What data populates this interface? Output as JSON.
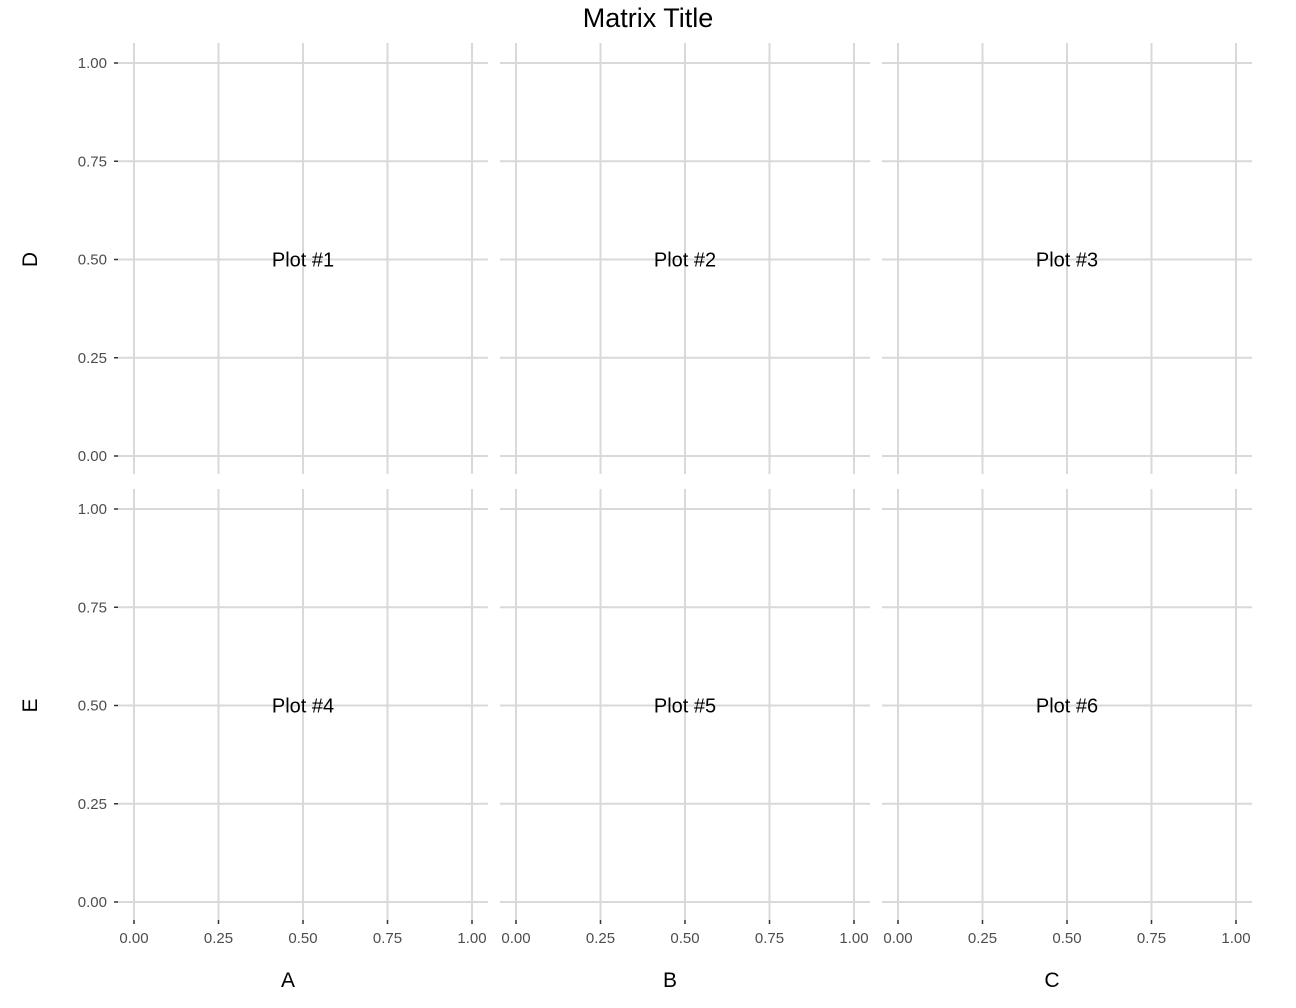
{
  "chart_data": {
    "type": "scatter",
    "title": "Matrix Title",
    "columns": [
      "A",
      "B",
      "C"
    ],
    "rows": [
      "D",
      "E"
    ],
    "xlim": [
      0,
      1
    ],
    "ylim": [
      0,
      1
    ],
    "x_ticks": [
      "0.00",
      "0.25",
      "0.50",
      "0.75",
      "1.00"
    ],
    "y_ticks": [
      "0.00",
      "0.25",
      "0.50",
      "0.75",
      "1.00"
    ],
    "grid": true,
    "panels": [
      {
        "row": "D",
        "column": "A",
        "label": "Plot #1",
        "label_x": 0.5,
        "label_y": 0.5
      },
      {
        "row": "D",
        "column": "B",
        "label": "Plot #2",
        "label_x": 0.5,
        "label_y": 0.5
      },
      {
        "row": "D",
        "column": "C",
        "label": "Plot #3",
        "label_x": 0.5,
        "label_y": 0.5
      },
      {
        "row": "E",
        "column": "A",
        "label": "Plot #4",
        "label_x": 0.5,
        "label_y": 0.5
      },
      {
        "row": "E",
        "column": "B",
        "label": "Plot #5",
        "label_x": 0.5,
        "label_y": 0.5
      },
      {
        "row": "E",
        "column": "C",
        "label": "Plot #6",
        "label_x": 0.5,
        "label_y": 0.5
      }
    ]
  }
}
